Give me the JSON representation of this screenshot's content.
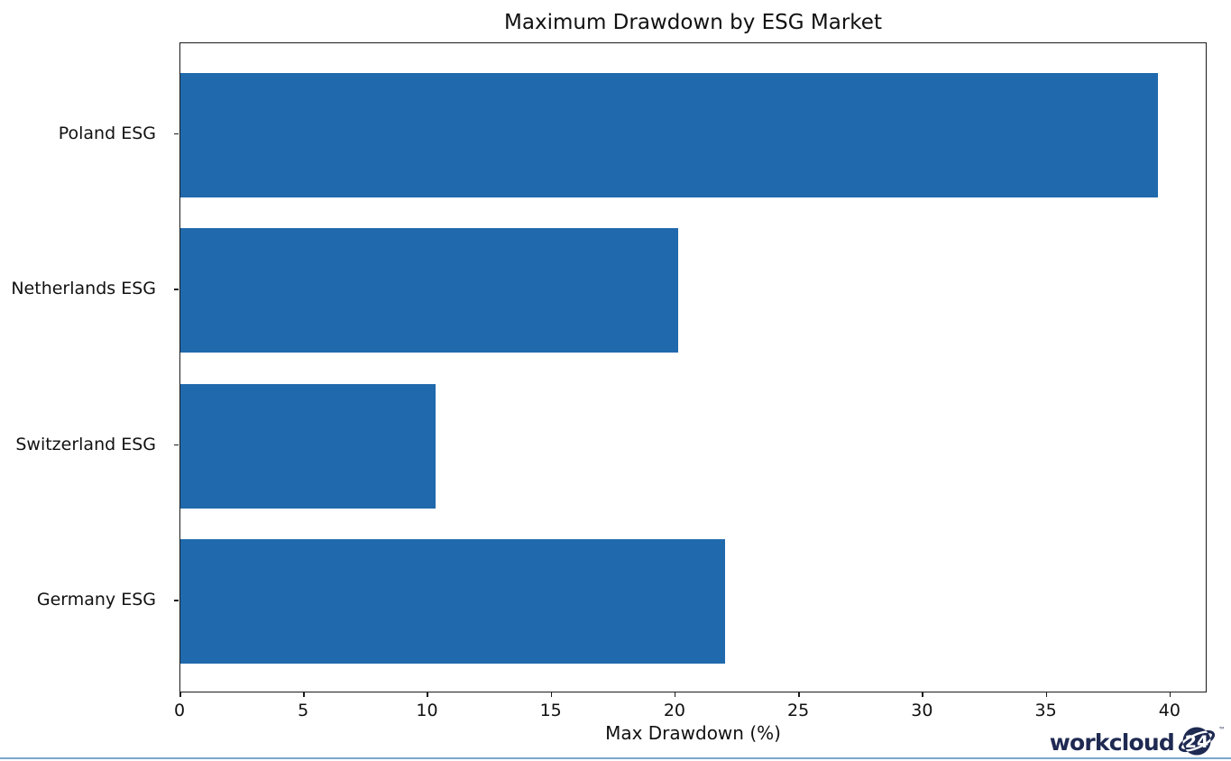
{
  "chart_data": {
    "type": "bar",
    "orientation": "horizontal",
    "title": "Maximum Drawdown by ESG Market",
    "xlabel": "Max Drawdown (%)",
    "ylabel": "",
    "categories": [
      "Poland ESG",
      "Netherlands ESG",
      "Switzerland ESG",
      "Germany ESG"
    ],
    "values": [
      39.5,
      20.1,
      10.3,
      22.0
    ],
    "xlim": [
      0,
      41.5
    ],
    "xticks": [
      0,
      5,
      10,
      15,
      20,
      25,
      30,
      35,
      40
    ],
    "bar_color": "#2069ad",
    "grid": false,
    "legend": null
  },
  "branding": {
    "logo_text": "workcloud",
    "logo_badge": "24",
    "trademark": "™",
    "logo_color": "#1f2a52",
    "bottom_rule_color": "#7aa7cd"
  }
}
